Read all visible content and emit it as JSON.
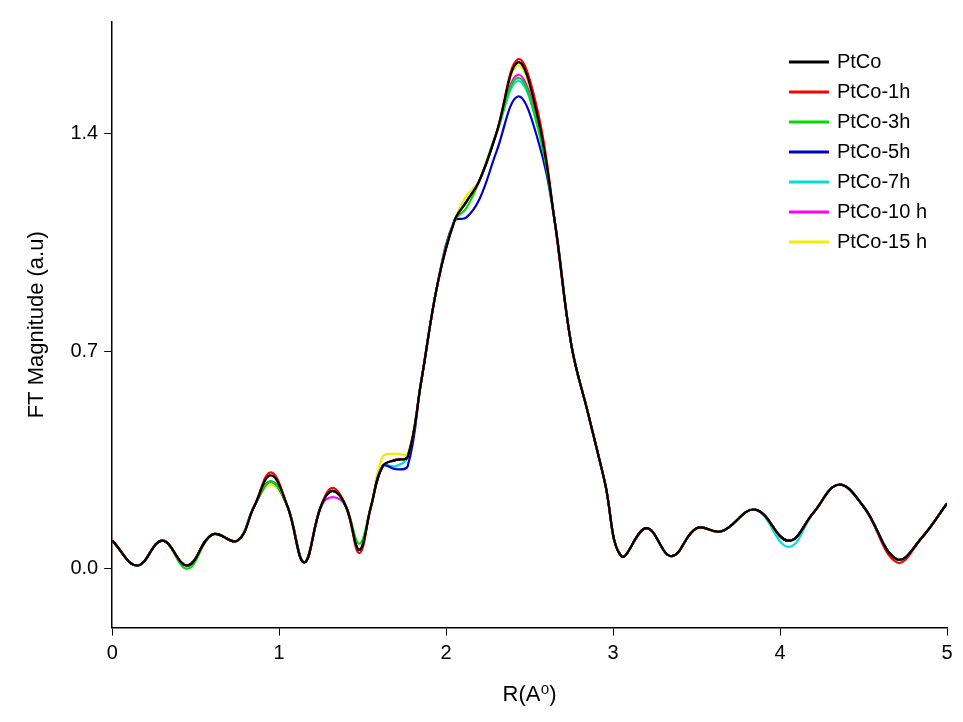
{
  "chart_data": {
    "type": "line",
    "x_label": "R(A⁰)",
    "y_label": "FT Magnitude (a.u)",
    "xlim": [
      0,
      5
    ],
    "ylim": [
      -0.19,
      1.76
    ],
    "xticks": [
      0,
      1,
      2,
      3,
      4,
      5
    ],
    "yticks": [
      {
        "value": 0,
        "label": "0.0"
      },
      {
        "value": 0.7,
        "label": "0.7"
      },
      {
        "value": 1.4,
        "label": "1.4"
      }
    ],
    "grid": false,
    "legend": "upper right",
    "x": [
      0,
      0.15,
      0.3,
      0.45,
      0.6,
      0.75,
      0.85,
      0.95,
      1.05,
      1.15,
      1.25,
      1.32,
      1.4,
      1.48,
      1.55,
      1.62,
      1.7,
      1.77,
      1.85,
      1.95,
      2.05,
      2.12,
      2.2,
      2.3,
      2.43,
      2.55,
      2.65,
      2.75,
      2.85,
      2.95,
      3.05,
      3.2,
      3.35,
      3.5,
      3.65,
      3.85,
      4.05,
      4.2,
      4.35,
      4.5,
      4.7,
      4.85,
      5.0
    ],
    "series": [
      {
        "name": "PtCo",
        "color": "#000000",
        "values": [
          0.09,
          0.01,
          0.09,
          0.01,
          0.11,
          0.09,
          0.2,
          0.3,
          0.2,
          0.02,
          0.2,
          0.25,
          0.2,
          0.06,
          0.2,
          0.33,
          0.35,
          0.36,
          0.6,
          0.92,
          1.12,
          1.18,
          1.25,
          1.4,
          1.63,
          1.45,
          1.12,
          0.72,
          0.5,
          0.28,
          0.04,
          0.13,
          0.04,
          0.13,
          0.12,
          0.19,
          0.09,
          0.18,
          0.27,
          0.2,
          0.03,
          0.1,
          0.21
        ]
      },
      {
        "name": "PtCo-1h",
        "color": "#ff0000",
        "values": [
          0.09,
          0.01,
          0.09,
          0.01,
          0.11,
          0.09,
          0.2,
          0.31,
          0.2,
          0.02,
          0.2,
          0.26,
          0.2,
          0.05,
          0.2,
          0.33,
          0.35,
          0.36,
          0.6,
          0.92,
          1.12,
          1.18,
          1.25,
          1.4,
          1.64,
          1.47,
          1.12,
          0.72,
          0.5,
          0.28,
          0.04,
          0.13,
          0.04,
          0.13,
          0.12,
          0.19,
          0.09,
          0.18,
          0.27,
          0.2,
          0.02,
          0.1,
          0.21
        ]
      },
      {
        "name": "PtCo-3h",
        "color": "#00dd00",
        "values": [
          0.09,
          0.01,
          0.09,
          0.0,
          0.11,
          0.09,
          0.2,
          0.28,
          0.2,
          0.02,
          0.2,
          0.25,
          0.2,
          0.08,
          0.2,
          0.33,
          0.35,
          0.36,
          0.6,
          0.92,
          1.12,
          1.16,
          1.25,
          1.4,
          1.58,
          1.42,
          1.12,
          0.72,
          0.5,
          0.28,
          0.04,
          0.13,
          0.04,
          0.13,
          0.12,
          0.19,
          0.09,
          0.18,
          0.27,
          0.2,
          0.03,
          0.1,
          0.21
        ]
      },
      {
        "name": "PtCo-5h",
        "color": "#0000cc",
        "values": [
          0.09,
          0.01,
          0.09,
          0.01,
          0.11,
          0.09,
          0.2,
          0.28,
          0.2,
          0.02,
          0.2,
          0.25,
          0.2,
          0.06,
          0.2,
          0.33,
          0.32,
          0.33,
          0.6,
          0.92,
          1.12,
          1.13,
          1.19,
          1.34,
          1.52,
          1.38,
          1.12,
          0.72,
          0.5,
          0.28,
          0.04,
          0.13,
          0.04,
          0.13,
          0.12,
          0.19,
          0.09,
          0.18,
          0.27,
          0.2,
          0.03,
          0.1,
          0.21
        ]
      },
      {
        "name": "PtCo-7h",
        "color": "#00dddd",
        "values": [
          0.09,
          0.01,
          0.09,
          0.01,
          0.11,
          0.09,
          0.2,
          0.28,
          0.2,
          0.02,
          0.2,
          0.25,
          0.2,
          0.06,
          0.2,
          0.33,
          0.33,
          0.36,
          0.6,
          0.92,
          1.12,
          1.18,
          1.25,
          1.4,
          1.57,
          1.42,
          1.12,
          0.72,
          0.5,
          0.28,
          0.04,
          0.13,
          0.04,
          0.13,
          0.12,
          0.19,
          0.07,
          0.18,
          0.27,
          0.2,
          0.03,
          0.1,
          0.21
        ]
      },
      {
        "name": "PtCo-10 h",
        "color": "#ff00ff",
        "values": [
          0.09,
          0.01,
          0.09,
          0.01,
          0.11,
          0.09,
          0.2,
          0.28,
          0.2,
          0.02,
          0.2,
          0.23,
          0.2,
          0.06,
          0.2,
          0.33,
          0.35,
          0.36,
          0.6,
          0.92,
          1.12,
          1.18,
          1.25,
          1.4,
          1.59,
          1.43,
          1.12,
          0.72,
          0.5,
          0.28,
          0.04,
          0.13,
          0.04,
          0.13,
          0.12,
          0.19,
          0.09,
          0.18,
          0.27,
          0.2,
          0.03,
          0.1,
          0.21
        ]
      },
      {
        "name": "PtCo-15 h",
        "color": "#eeee00",
        "values": [
          0.09,
          0.01,
          0.09,
          0.01,
          0.11,
          0.09,
          0.2,
          0.27,
          0.2,
          0.02,
          0.2,
          0.25,
          0.2,
          0.06,
          0.2,
          0.36,
          0.37,
          0.37,
          0.6,
          0.92,
          1.12,
          1.2,
          1.25,
          1.4,
          1.62,
          1.44,
          1.12,
          0.72,
          0.5,
          0.28,
          0.04,
          0.13,
          0.04,
          0.13,
          0.12,
          0.19,
          0.09,
          0.18,
          0.27,
          0.2,
          0.03,
          0.1,
          0.21
        ]
      }
    ]
  }
}
